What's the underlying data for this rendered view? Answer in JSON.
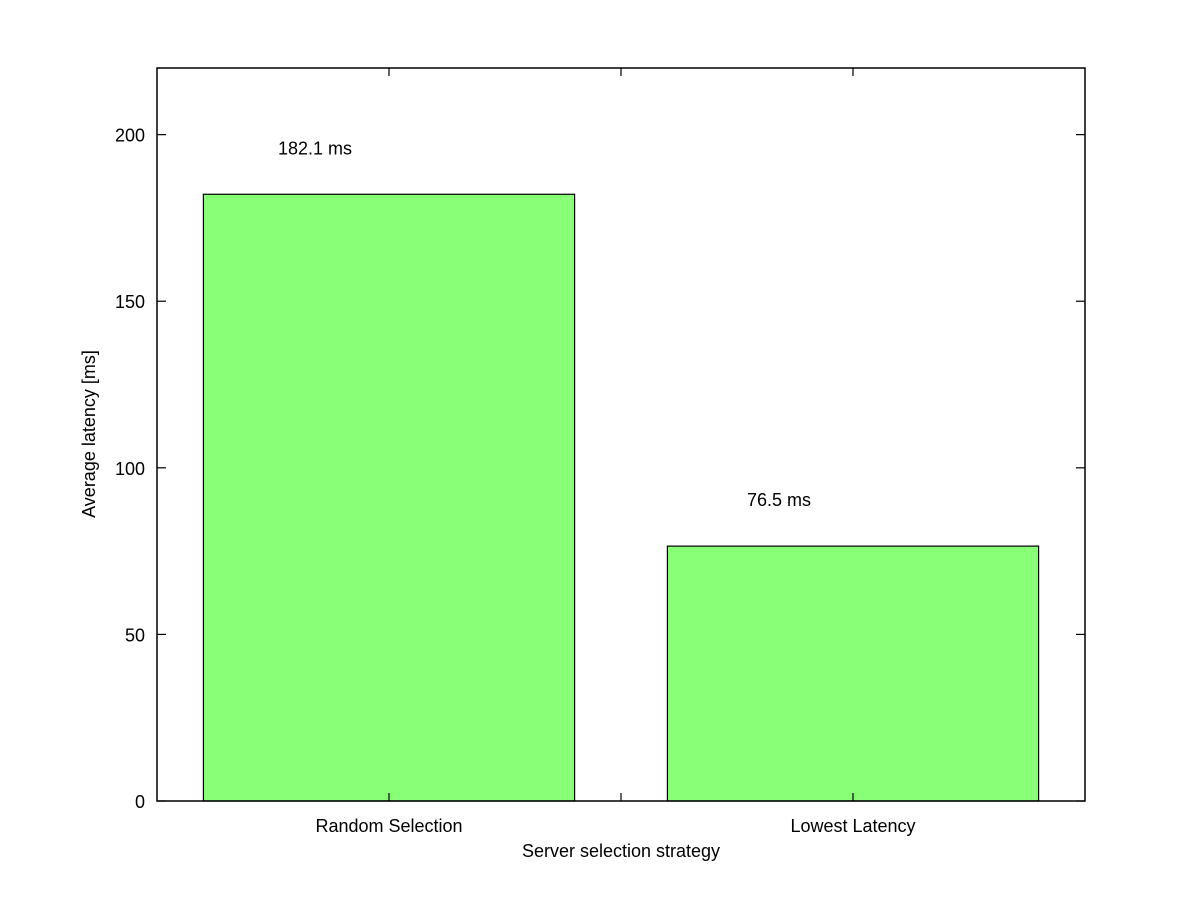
{
  "chart_data": {
    "type": "bar",
    "title": "",
    "xlabel": "Server selection strategy",
    "ylabel": "Average latency [ms]",
    "categories": [
      "Random Selection",
      "Lowest Latency"
    ],
    "values": [
      182.1,
      76.5
    ],
    "data_labels": [
      "182.1 ms",
      "76.5 ms"
    ],
    "ylim": [
      0,
      220
    ],
    "yticks": [
      0,
      50,
      100,
      150,
      200
    ],
    "grid": false,
    "legend": "none",
    "bar_color": "#88ff77"
  }
}
